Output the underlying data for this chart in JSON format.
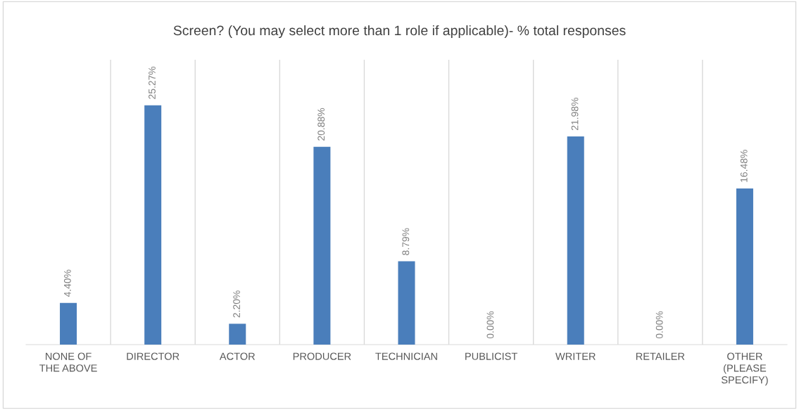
{
  "chart_data": {
    "type": "bar",
    "title": "Screen? (You may select more than 1 role if applicable)- % total responses",
    "categories": [
      "NONE OF THE ABOVE",
      "DIRECTOR",
      "ACTOR",
      "PRODUCER",
      "TECHNICIAN",
      "PUBLICIST",
      "WRITER",
      "RETAILER",
      "OTHER (PLEASE SPECIFY)"
    ],
    "values": [
      4.4,
      25.27,
      2.2,
      20.88,
      8.79,
      0.0,
      21.98,
      0.0,
      16.48
    ],
    "value_labels": [
      "4.40%",
      "25.27%",
      "2.20%",
      "20.88%",
      "8.79%",
      "0.00%",
      "21.98%",
      "0.00%",
      "16.48%"
    ],
    "color": "#4a7ebb",
    "grid": "x",
    "legend": false
  }
}
